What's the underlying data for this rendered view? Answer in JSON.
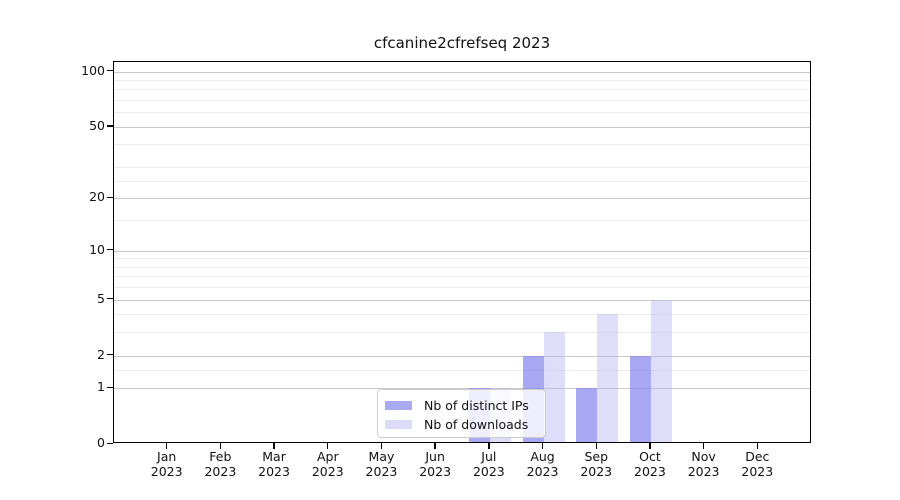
{
  "title": "cfcanine2cfrefseq 2023",
  "chart_data": {
    "type": "bar",
    "title": "cfcanine2cfrefseq 2023",
    "xlabel": "",
    "ylabel": "",
    "scale": "log1p",
    "grid": true,
    "legend_position": "lower center",
    "ylim": [
      0,
      113
    ],
    "yticks": [
      0,
      1,
      2,
      5,
      10,
      20,
      50,
      100
    ],
    "minor_yticks": [
      1.5,
      3,
      4,
      6,
      7,
      8,
      9,
      15,
      25,
      30,
      40,
      60,
      70,
      80,
      90
    ],
    "categories": [
      {
        "month": "Jan",
        "year": "2023"
      },
      {
        "month": "Feb",
        "year": "2023"
      },
      {
        "month": "Mar",
        "year": "2023"
      },
      {
        "month": "Apr",
        "year": "2023"
      },
      {
        "month": "May",
        "year": "2023"
      },
      {
        "month": "Jun",
        "year": "2023"
      },
      {
        "month": "Jul",
        "year": "2023"
      },
      {
        "month": "Aug",
        "year": "2023"
      },
      {
        "month": "Sep",
        "year": "2023"
      },
      {
        "month": "Oct",
        "year": "2023"
      },
      {
        "month": "Nov",
        "year": "2023"
      },
      {
        "month": "Dec",
        "year": "2023"
      }
    ],
    "series": [
      {
        "name": "Nb of distinct IPs",
        "values": [
          0,
          0,
          0,
          0,
          0,
          0,
          1,
          2,
          1,
          2,
          0,
          0
        ],
        "color": "#aaaaf3",
        "fill": "rgba(136,136,238,0.72)"
      },
      {
        "name": "Nb of downloads",
        "values": [
          0,
          0,
          0,
          0,
          0,
          0,
          1,
          3,
          4,
          5,
          0,
          0
        ],
        "color": "#dcdcf9",
        "fill": "rgba(182,182,243,0.45)"
      }
    ]
  }
}
